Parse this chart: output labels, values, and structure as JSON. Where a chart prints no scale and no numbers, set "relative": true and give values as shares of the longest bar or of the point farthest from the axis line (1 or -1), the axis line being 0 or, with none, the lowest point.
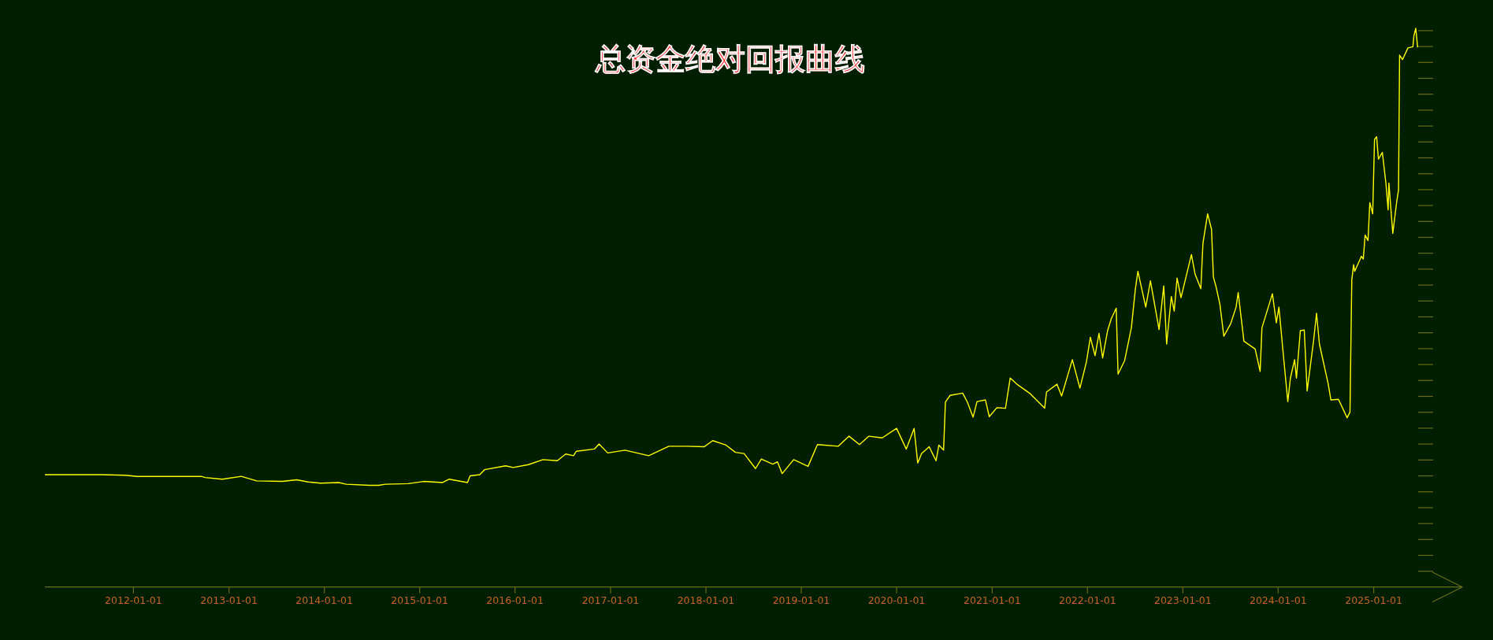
{
  "chart_data": {
    "type": "line",
    "title": "总资金绝对回报曲线",
    "relative": true,
    "color": "#ffff00",
    "xlim": [
      "2011-01-27",
      "2025-12-06"
    ],
    "xticks": [
      "2012-01-01",
      "2013-01-01",
      "2014-01-01",
      "2015-01-01",
      "2016-01-01",
      "2017-01-01",
      "2018-01-01",
      "2019-01-01",
      "2020-01-01",
      "2021-01-01",
      "2022-01-01",
      "2023-01-01",
      "2024-01-01",
      "2025-01-01"
    ],
    "x": [
      "2011-01-27",
      "2011-09-03",
      "2011-12-03",
      "2012-01-16",
      "2012-09-17",
      "2012-10-02",
      "2012-12-06",
      "2013-02-17",
      "2013-04-17",
      "2013-07-24",
      "2013-09-17",
      "2013-10-31",
      "2013-12-17",
      "2014-02-25",
      "2014-03-26",
      "2014-06-22",
      "2014-07-28",
      "2014-08-23",
      "2014-11-18",
      "2015-01-16",
      "2015-03-30",
      "2015-04-24",
      "2015-07-03",
      "2015-07-13",
      "2015-08-19",
      "2015-09-06",
      "2015-11-26",
      "2015-12-25",
      "2016-02-21",
      "2016-04-17",
      "2016-06-11",
      "2016-07-13",
      "2016-08-12",
      "2016-08-23",
      "2016-10-31",
      "2016-11-18",
      "2016-12-21",
      "2017-02-25",
      "2017-05-27",
      "2017-08-12",
      "2017-10-20",
      "2017-12-25",
      "2018-01-27",
      "2018-03-19",
      "2018-04-24",
      "2018-05-27",
      "2018-07-10",
      "2018-08-01",
      "2018-09-14",
      "2018-10-02",
      "2018-10-20",
      "2018-12-03",
      "2019-01-27",
      "2019-03-04",
      "2019-05-23",
      "2019-07-03",
      "2019-08-12",
      "2019-09-17",
      "2019-11-07",
      "2020-01-01",
      "2020-02-07",
      "2020-03-08",
      "2020-03-22",
      "2020-04-06",
      "2020-05-05",
      "2020-05-31",
      "2020-06-11",
      "2020-06-29",
      "2020-07-06",
      "2020-07-24",
      "2020-09-10",
      "2020-09-28",
      "2020-10-20",
      "2020-11-04",
      "2020-12-06",
      "2020-12-21",
      "2021-01-19",
      "2021-02-21",
      "2021-03-11",
      "2021-04-06",
      "2021-05-27",
      "2021-07-21",
      "2021-07-28",
      "2021-09-06",
      "2021-09-24",
      "2021-11-04",
      "2021-12-03",
      "2021-12-28",
      "2022-01-12",
      "2022-01-30",
      "2022-02-14",
      "2022-02-28",
      "2022-03-19",
      "2022-04-02",
      "2022-04-21",
      "2022-04-28",
      "2022-05-23",
      "2022-06-18",
      "2022-07-03",
      "2022-07-13",
      "2022-08-12",
      "2022-08-30",
      "2022-10-02",
      "2022-10-20",
      "2022-10-31",
      "2022-11-18",
      "2022-11-29",
      "2022-12-10",
      "2022-12-25",
      "2023-02-03",
      "2023-02-17",
      "2023-03-11",
      "2023-03-19",
      "2023-04-06",
      "2023-04-21",
      "2023-04-28",
      "2023-05-09",
      "2023-05-23",
      "2023-06-07",
      "2023-07-03",
      "2023-07-24",
      "2023-08-01",
      "2023-08-23",
      "2023-10-05",
      "2023-10-24",
      "2023-10-31",
      "2023-12-10",
      "2023-12-25",
      "2024-01-04",
      "2024-01-23",
      "2024-02-07",
      "2024-02-17",
      "2024-03-04",
      "2024-03-11",
      "2024-03-26",
      "2024-04-10",
      "2024-04-21",
      "2024-05-16",
      "2024-05-27",
      "2024-06-07",
      "2024-07-10",
      "2024-07-21",
      "2024-08-19",
      "2024-09-21",
      "2024-10-02",
      "2024-10-09",
      "2024-10-16",
      "2024-10-20",
      "2024-11-15",
      "2024-11-22",
      "2024-11-29",
      "2024-12-10",
      "2024-12-17",
      "2024-12-28",
      "2025-01-04",
      "2025-01-12",
      "2025-01-19",
      "2025-02-03",
      "2025-02-17",
      "2025-02-25",
      "2025-02-28",
      "2025-03-15",
      "2025-03-30",
      "2025-04-06",
      "2025-04-10",
      "2025-04-21",
      "2025-05-12",
      "2025-05-31",
      "2025-06-04",
      "2025-06-11",
      "2025-06-18"
    ],
    "values": [
      0.201,
      0.201,
      0.2,
      0.198,
      0.198,
      0.196,
      0.193,
      0.198,
      0.19,
      0.189,
      0.192,
      0.188,
      0.186,
      0.187,
      0.184,
      0.182,
      0.182,
      0.184,
      0.185,
      0.189,
      0.187,
      0.193,
      0.187,
      0.199,
      0.201,
      0.21,
      0.217,
      0.214,
      0.219,
      0.228,
      0.226,
      0.238,
      0.235,
      0.243,
      0.247,
      0.256,
      0.24,
      0.245,
      0.235,
      0.252,
      0.252,
      0.251,
      0.262,
      0.254,
      0.241,
      0.239,
      0.212,
      0.229,
      0.22,
      0.224,
      0.203,
      0.228,
      0.216,
      0.255,
      0.252,
      0.27,
      0.255,
      0.27,
      0.267,
      0.284,
      0.247,
      0.284,
      0.222,
      0.239,
      0.251,
      0.226,
      0.254,
      0.245,
      0.331,
      0.343,
      0.347,
      0.331,
      0.304,
      0.332,
      0.335,
      0.305,
      0.321,
      0.32,
      0.374,
      0.363,
      0.346,
      0.32,
      0.349,
      0.363,
      0.342,
      0.407,
      0.356,
      0.403,
      0.447,
      0.414,
      0.454,
      0.41,
      0.459,
      0.48,
      0.499,
      0.381,
      0.405,
      0.464,
      0.532,
      0.565,
      0.501,
      0.548,
      0.461,
      0.539,
      0.435,
      0.52,
      0.494,
      0.553,
      0.518,
      0.595,
      0.56,
      0.534,
      0.615,
      0.668,
      0.64,
      0.555,
      0.536,
      0.506,
      0.449,
      0.471,
      0.501,
      0.527,
      0.44,
      0.426,
      0.386,
      0.464,
      0.525,
      0.473,
      0.501,
      0.405,
      0.332,
      0.374,
      0.407,
      0.374,
      0.459,
      0.46,
      0.351,
      0.442,
      0.49,
      0.435,
      0.365,
      0.335,
      0.336,
      0.303,
      0.313,
      0.55,
      0.577,
      0.565,
      0.592,
      0.587,
      0.63,
      0.62,
      0.688,
      0.668,
      0.801,
      0.806,
      0.766,
      0.778,
      0.721,
      0.675,
      0.723,
      0.633,
      0.69,
      0.711,
      0.952,
      0.944,
      0.965,
      0.967,
      0.987,
      1.0,
      0.966
    ]
  }
}
